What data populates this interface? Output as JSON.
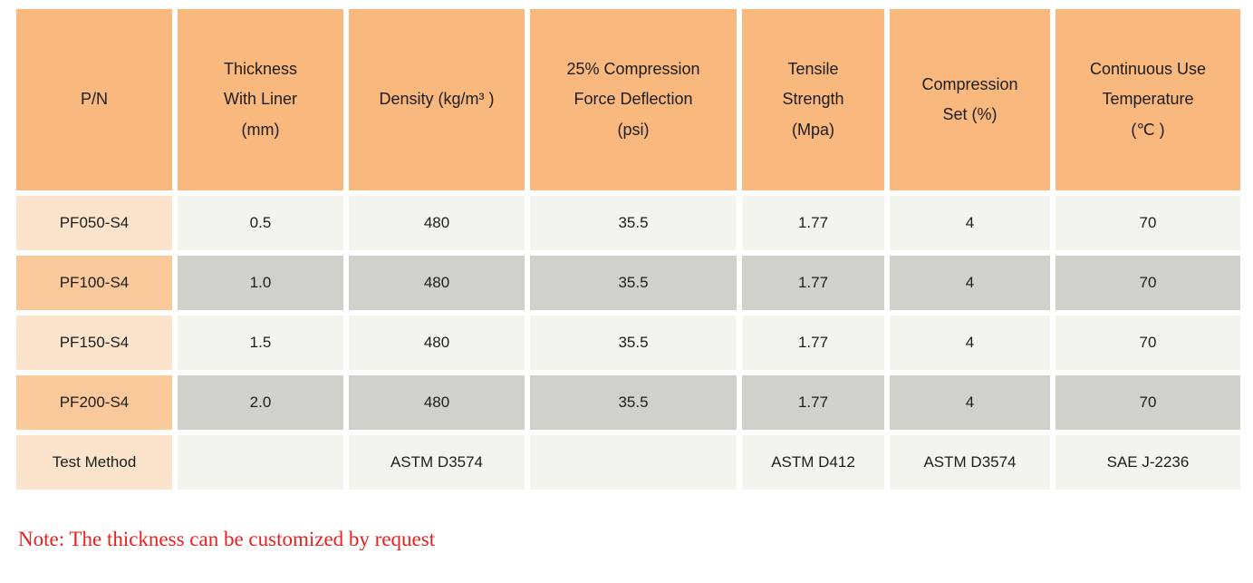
{
  "table": {
    "columns": [
      {
        "label": "P/N"
      },
      {
        "label": "Thickness\nWith Liner\n(mm)"
      },
      {
        "label": "Density (kg/m³ )"
      },
      {
        "label": "25% Compression\nForce Deflection\n(psi)"
      },
      {
        "label": "Tensile\nStrength\n(Mpa)"
      },
      {
        "label": "Compression\nSet (%)"
      },
      {
        "label": "Continuous Use\nTemperature\n(℃ )"
      }
    ],
    "rows": [
      {
        "cells": [
          "PF050-S4",
          "0.5",
          "480",
          "35.5",
          "1.77",
          "4",
          "70"
        ]
      },
      {
        "cells": [
          "PF100-S4",
          "1.0",
          "480",
          "35.5",
          "1.77",
          "4",
          "70"
        ]
      },
      {
        "cells": [
          "PF150-S4",
          "1.5",
          "480",
          "35.5",
          "1.77",
          "4",
          "70"
        ]
      },
      {
        "cells": [
          "PF200-S4",
          "2.0",
          "480",
          "35.5",
          "1.77",
          "4",
          "70"
        ]
      },
      {
        "cells": [
          "Test Method",
          "",
          "ASTM D3574",
          "",
          "ASTM D412",
          "ASTM D3574",
          "SAE J-2236"
        ]
      }
    ]
  },
  "note": "Note: The thickness can be customized by request",
  "colors": {
    "header-bg": "#f8b87e",
    "pn-light-bg": "#fce3cc",
    "pn-medium-bg": "#f9c89b",
    "cell-light-bg": "#f4f4ef",
    "cell-dark-bg": "#d1d1cb",
    "text": "#1d1d1b",
    "note-red": "#e8201e"
  }
}
